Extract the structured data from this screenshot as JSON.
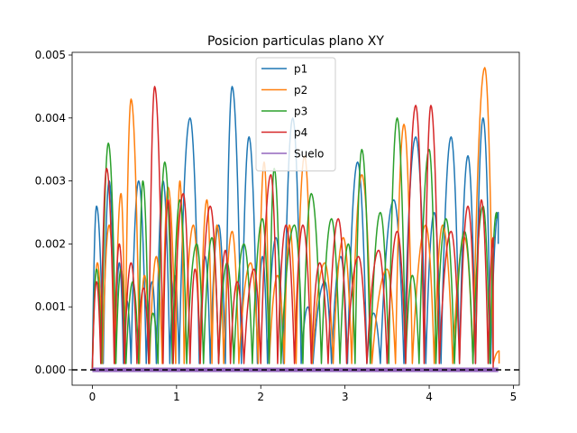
{
  "chart_data": {
    "type": "line",
    "title": "Posicion particulas plano XY",
    "xlabel": "",
    "ylabel": "",
    "xlim": [
      -0.24,
      5.07
    ],
    "ylim": [
      -0.000244,
      0.005043
    ],
    "xticks": [
      0,
      1,
      2,
      3,
      4,
      5
    ],
    "xtick_labels": [
      "0",
      "1",
      "2",
      "3",
      "4",
      "5"
    ],
    "yticks": [
      0.0,
      0.001,
      0.002,
      0.003,
      0.004,
      0.005
    ],
    "ytick_labels": [
      "0.000",
      "0.001",
      "0.002",
      "0.003",
      "0.004",
      "0.005"
    ],
    "grid": false,
    "legend_position": "upper center",
    "baseline": {
      "y": 0.0,
      "style": "dashed",
      "color": "#000000"
    },
    "series": [
      {
        "name": "p1",
        "color": "#1f77b4",
        "bounces": [
          [
            0.0,
            0.0
          ],
          [
            0.05,
            0.0026
          ],
          [
            0.13,
            0.0001
          ],
          [
            0.2,
            0.003
          ],
          [
            0.27,
            0.0001
          ],
          [
            0.32,
            0.0017
          ],
          [
            0.37,
            0.0001
          ],
          [
            0.41,
            0.0011
          ],
          [
            0.46,
            0.0001
          ],
          [
            0.55,
            0.003
          ],
          [
            0.64,
            0.0001
          ],
          [
            0.71,
            0.0014
          ],
          [
            0.76,
            0.0001
          ],
          [
            0.84,
            0.003
          ],
          [
            0.92,
            0.0001
          ],
          [
            0.98,
            0.0015
          ],
          [
            1.03,
            0.0001
          ],
          [
            1.16,
            0.004
          ],
          [
            1.27,
            0.0001
          ],
          [
            1.34,
            0.0018
          ],
          [
            1.4,
            0.0001
          ],
          [
            1.5,
            0.0023
          ],
          [
            1.58,
            0.0001
          ],
          [
            1.66,
            0.0045
          ],
          [
            1.77,
            0.0001
          ],
          [
            1.86,
            0.0037
          ],
          [
            1.96,
            0.0001
          ],
          [
            2.02,
            0.0018
          ],
          [
            2.08,
            0.0001
          ],
          [
            2.18,
            0.0021
          ],
          [
            2.27,
            0.0001
          ],
          [
            2.38,
            0.004
          ],
          [
            2.48,
            0.0001
          ],
          [
            2.56,
            0.001
          ],
          [
            2.62,
            0.0001
          ],
          [
            2.76,
            0.0014
          ],
          [
            2.84,
            0.0001
          ],
          [
            2.95,
            0.0018
          ],
          [
            3.03,
            0.0001
          ],
          [
            3.15,
            0.0033
          ],
          [
            3.26,
            0.0001
          ],
          [
            3.34,
            0.0009
          ],
          [
            3.42,
            0.0001
          ],
          [
            3.58,
            0.0027
          ],
          [
            3.7,
            0.0001
          ],
          [
            3.84,
            0.0037
          ],
          [
            3.96,
            0.0001
          ],
          [
            4.06,
            0.0025
          ],
          [
            4.14,
            0.0001
          ],
          [
            4.26,
            0.0037
          ],
          [
            4.36,
            0.0001
          ],
          [
            4.46,
            0.0034
          ],
          [
            4.55,
            0.0001
          ],
          [
            4.64,
            0.004
          ],
          [
            4.73,
            0.0001
          ],
          [
            4.82,
            0.0025
          ]
        ],
        "last_y": 0.002
      },
      {
        "name": "p2",
        "color": "#ff7f0e",
        "bounces": [
          [
            0.0,
            0.0
          ],
          [
            0.06,
            0.0017
          ],
          [
            0.12,
            0.0001
          ],
          [
            0.2,
            0.0023
          ],
          [
            0.27,
            0.0001
          ],
          [
            0.34,
            0.0028
          ],
          [
            0.39,
            0.0001
          ],
          [
            0.46,
            0.0043
          ],
          [
            0.56,
            0.0001
          ],
          [
            0.62,
            0.0015
          ],
          [
            0.68,
            0.0001
          ],
          [
            0.76,
            0.0018
          ],
          [
            0.83,
            0.0001
          ],
          [
            0.9,
            0.0029
          ],
          [
            0.99,
            0.0001
          ],
          [
            1.04,
            0.003
          ],
          [
            1.09,
            0.0001
          ],
          [
            1.2,
            0.0023
          ],
          [
            1.28,
            0.0001
          ],
          [
            1.36,
            0.0027
          ],
          [
            1.42,
            0.0001
          ],
          [
            1.48,
            0.0023
          ],
          [
            1.56,
            0.0001
          ],
          [
            1.66,
            0.0022
          ],
          [
            1.74,
            0.0001
          ],
          [
            1.88,
            0.0017
          ],
          [
            1.97,
            0.0001
          ],
          [
            2.04,
            0.0033
          ],
          [
            2.1,
            0.0001
          ],
          [
            2.2,
            0.0015
          ],
          [
            2.28,
            0.0001
          ],
          [
            2.34,
            0.0023
          ],
          [
            2.42,
            0.0001
          ],
          [
            2.52,
            0.0034
          ],
          [
            2.61,
            0.0001
          ],
          [
            2.76,
            0.0017
          ],
          [
            2.86,
            0.0001
          ],
          [
            2.98,
            0.0021
          ],
          [
            3.08,
            0.0001
          ],
          [
            3.2,
            0.0031
          ],
          [
            3.32,
            0.0001
          ],
          [
            3.5,
            0.0016
          ],
          [
            3.6,
            0.0001
          ],
          [
            3.7,
            0.0039
          ],
          [
            3.8,
            0.0001
          ],
          [
            3.96,
            0.0023
          ],
          [
            4.06,
            0.0001
          ],
          [
            4.16,
            0.0023
          ],
          [
            4.28,
            0.0001
          ],
          [
            4.42,
            0.0021
          ],
          [
            4.52,
            0.0001
          ],
          [
            4.66,
            0.0048
          ],
          [
            4.76,
            0.0001
          ],
          [
            4.83,
            0.0003
          ]
        ],
        "last_y": 0.0001
      },
      {
        "name": "p3",
        "color": "#2ca02c",
        "bounces": [
          [
            0.0,
            0.0
          ],
          [
            0.05,
            0.0016
          ],
          [
            0.11,
            0.0001
          ],
          [
            0.19,
            0.0036
          ],
          [
            0.28,
            0.0001
          ],
          [
            0.34,
            0.0016
          ],
          [
            0.4,
            0.0001
          ],
          [
            0.48,
            0.0014
          ],
          [
            0.55,
            0.0001
          ],
          [
            0.6,
            0.003
          ],
          [
            0.67,
            0.0001
          ],
          [
            0.72,
            0.0009
          ],
          [
            0.78,
            0.0001
          ],
          [
            0.86,
            0.0033
          ],
          [
            0.95,
            0.0001
          ],
          [
            1.04,
            0.0027
          ],
          [
            1.12,
            0.0001
          ],
          [
            1.24,
            0.002
          ],
          [
            1.32,
            0.0001
          ],
          [
            1.42,
            0.0021
          ],
          [
            1.5,
            0.0001
          ],
          [
            1.6,
            0.0017
          ],
          [
            1.68,
            0.0001
          ],
          [
            1.8,
            0.002
          ],
          [
            1.9,
            0.0001
          ],
          [
            2.02,
            0.0024
          ],
          [
            2.1,
            0.0001
          ],
          [
            2.16,
            0.0032
          ],
          [
            2.24,
            0.0001
          ],
          [
            2.4,
            0.0023
          ],
          [
            2.5,
            0.0001
          ],
          [
            2.6,
            0.0028
          ],
          [
            2.72,
            0.0001
          ],
          [
            2.84,
            0.0024
          ],
          [
            2.94,
            0.0001
          ],
          [
            3.04,
            0.002
          ],
          [
            3.12,
            0.0001
          ],
          [
            3.2,
            0.0035
          ],
          [
            3.3,
            0.0001
          ],
          [
            3.42,
            0.0025
          ],
          [
            3.52,
            0.0001
          ],
          [
            3.62,
            0.004
          ],
          [
            3.72,
            0.0001
          ],
          [
            3.8,
            0.0015
          ],
          [
            3.88,
            0.0001
          ],
          [
            4.0,
            0.0035
          ],
          [
            4.08,
            0.0001
          ],
          [
            4.2,
            0.0024
          ],
          [
            4.3,
            0.0001
          ],
          [
            4.42,
            0.0022
          ],
          [
            4.52,
            0.0001
          ],
          [
            4.64,
            0.0026
          ],
          [
            4.72,
            0.0001
          ],
          [
            4.8,
            0.0025
          ]
        ],
        "last_y": 0.0024
      },
      {
        "name": "p4",
        "color": "#d62728",
        "bounces": [
          [
            0.0,
            0.0
          ],
          [
            0.05,
            0.0014
          ],
          [
            0.1,
            0.0001
          ],
          [
            0.17,
            0.0032
          ],
          [
            0.26,
            0.0001
          ],
          [
            0.32,
            0.002
          ],
          [
            0.38,
            0.0001
          ],
          [
            0.46,
            0.0017
          ],
          [
            0.53,
            0.0001
          ],
          [
            0.61,
            0.0013
          ],
          [
            0.67,
            0.0001
          ],
          [
            0.74,
            0.0045
          ],
          [
            0.84,
            0.0001
          ],
          [
            0.9,
            0.0027
          ],
          [
            0.96,
            0.0001
          ],
          [
            1.08,
            0.0028
          ],
          [
            1.16,
            0.0001
          ],
          [
            1.22,
            0.0016
          ],
          [
            1.28,
            0.0001
          ],
          [
            1.4,
            0.0026
          ],
          [
            1.5,
            0.0001
          ],
          [
            1.58,
            0.0019
          ],
          [
            1.64,
            0.0001
          ],
          [
            1.72,
            0.0014
          ],
          [
            1.8,
            0.0001
          ],
          [
            1.92,
            0.0016
          ],
          [
            2.0,
            0.0001
          ],
          [
            2.12,
            0.0031
          ],
          [
            2.2,
            0.0001
          ],
          [
            2.3,
            0.0023
          ],
          [
            2.4,
            0.0001
          ],
          [
            2.5,
            0.0023
          ],
          [
            2.6,
            0.0001
          ],
          [
            2.7,
            0.0017
          ],
          [
            2.8,
            0.0001
          ],
          [
            2.92,
            0.0024
          ],
          [
            3.02,
            0.0001
          ],
          [
            3.16,
            0.0018
          ],
          [
            3.26,
            0.0001
          ],
          [
            3.4,
            0.0019
          ],
          [
            3.5,
            0.0001
          ],
          [
            3.62,
            0.0022
          ],
          [
            3.72,
            0.0001
          ],
          [
            3.84,
            0.0042
          ],
          [
            3.94,
            0.0001
          ],
          [
            4.02,
            0.0042
          ],
          [
            4.12,
            0.0001
          ],
          [
            4.26,
            0.0022
          ],
          [
            4.36,
            0.0001
          ],
          [
            4.46,
            0.0026
          ],
          [
            4.55,
            0.0001
          ],
          [
            4.62,
            0.0027
          ],
          [
            4.7,
            0.0001
          ],
          [
            4.76,
            0.0021
          ]
        ],
        "last_y": 0.0
      },
      {
        "name": "Suelo",
        "color": "#9467bd",
        "x": [
          0.0,
          4.82
        ],
        "y": [
          0.0,
          0.0
        ]
      }
    ]
  }
}
